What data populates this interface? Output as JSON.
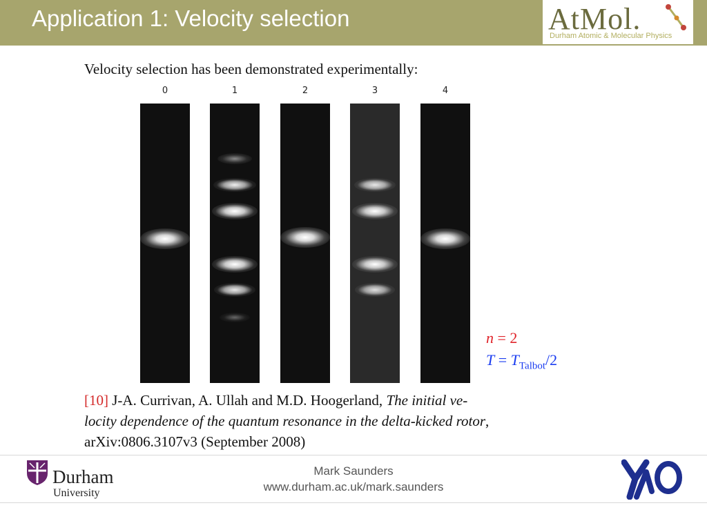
{
  "header": {
    "title": "Application 1: Velocity selection",
    "logo_text": "AtMol.",
    "logo_subtitle": "Durham Atomic & Molecular Physics",
    "accent_color": "#a7a56d"
  },
  "main": {
    "intro": "Velocity selection has been demonstrated experimentally:",
    "strips": [
      {
        "label": "0",
        "kind": "zero-order"
      },
      {
        "label": "1",
        "kind": "multi-order"
      },
      {
        "label": "2",
        "kind": "zero-order"
      },
      {
        "label": "3",
        "kind": "multi-order-noisy"
      },
      {
        "label": "4",
        "kind": "zero-order"
      }
    ],
    "parameters": {
      "n_symbol": "n",
      "n_value": " = 2",
      "t_symbol": "T",
      "t_eq": " = ",
      "t_rhs_symbol": "T",
      "t_subscript": "Talbot",
      "t_rhs_tail": "/2",
      "n_color": "#e0242a",
      "t_color": "#1a3cf0"
    },
    "reference": {
      "number": "[10]",
      "authors": " J-A. Currivan, A. Ullah and M.D. Hoogerland, ",
      "title_part1": "The initial ve-",
      "title_part2": "locity dependence of the quantum resonance in the delta-kicked rotor",
      "title_tail": ",",
      "identifier": "arXiv:0806.3107v3 (September 2008)"
    }
  },
  "footer": {
    "author": "Mark Saunders",
    "url": "www.durham.ac.uk/mark.saunders",
    "university_name": "Durham",
    "university_sub": "University",
    "right_logo": "YAO",
    "durham_color": "#68246d",
    "yao_color": "#1e2f8f"
  }
}
